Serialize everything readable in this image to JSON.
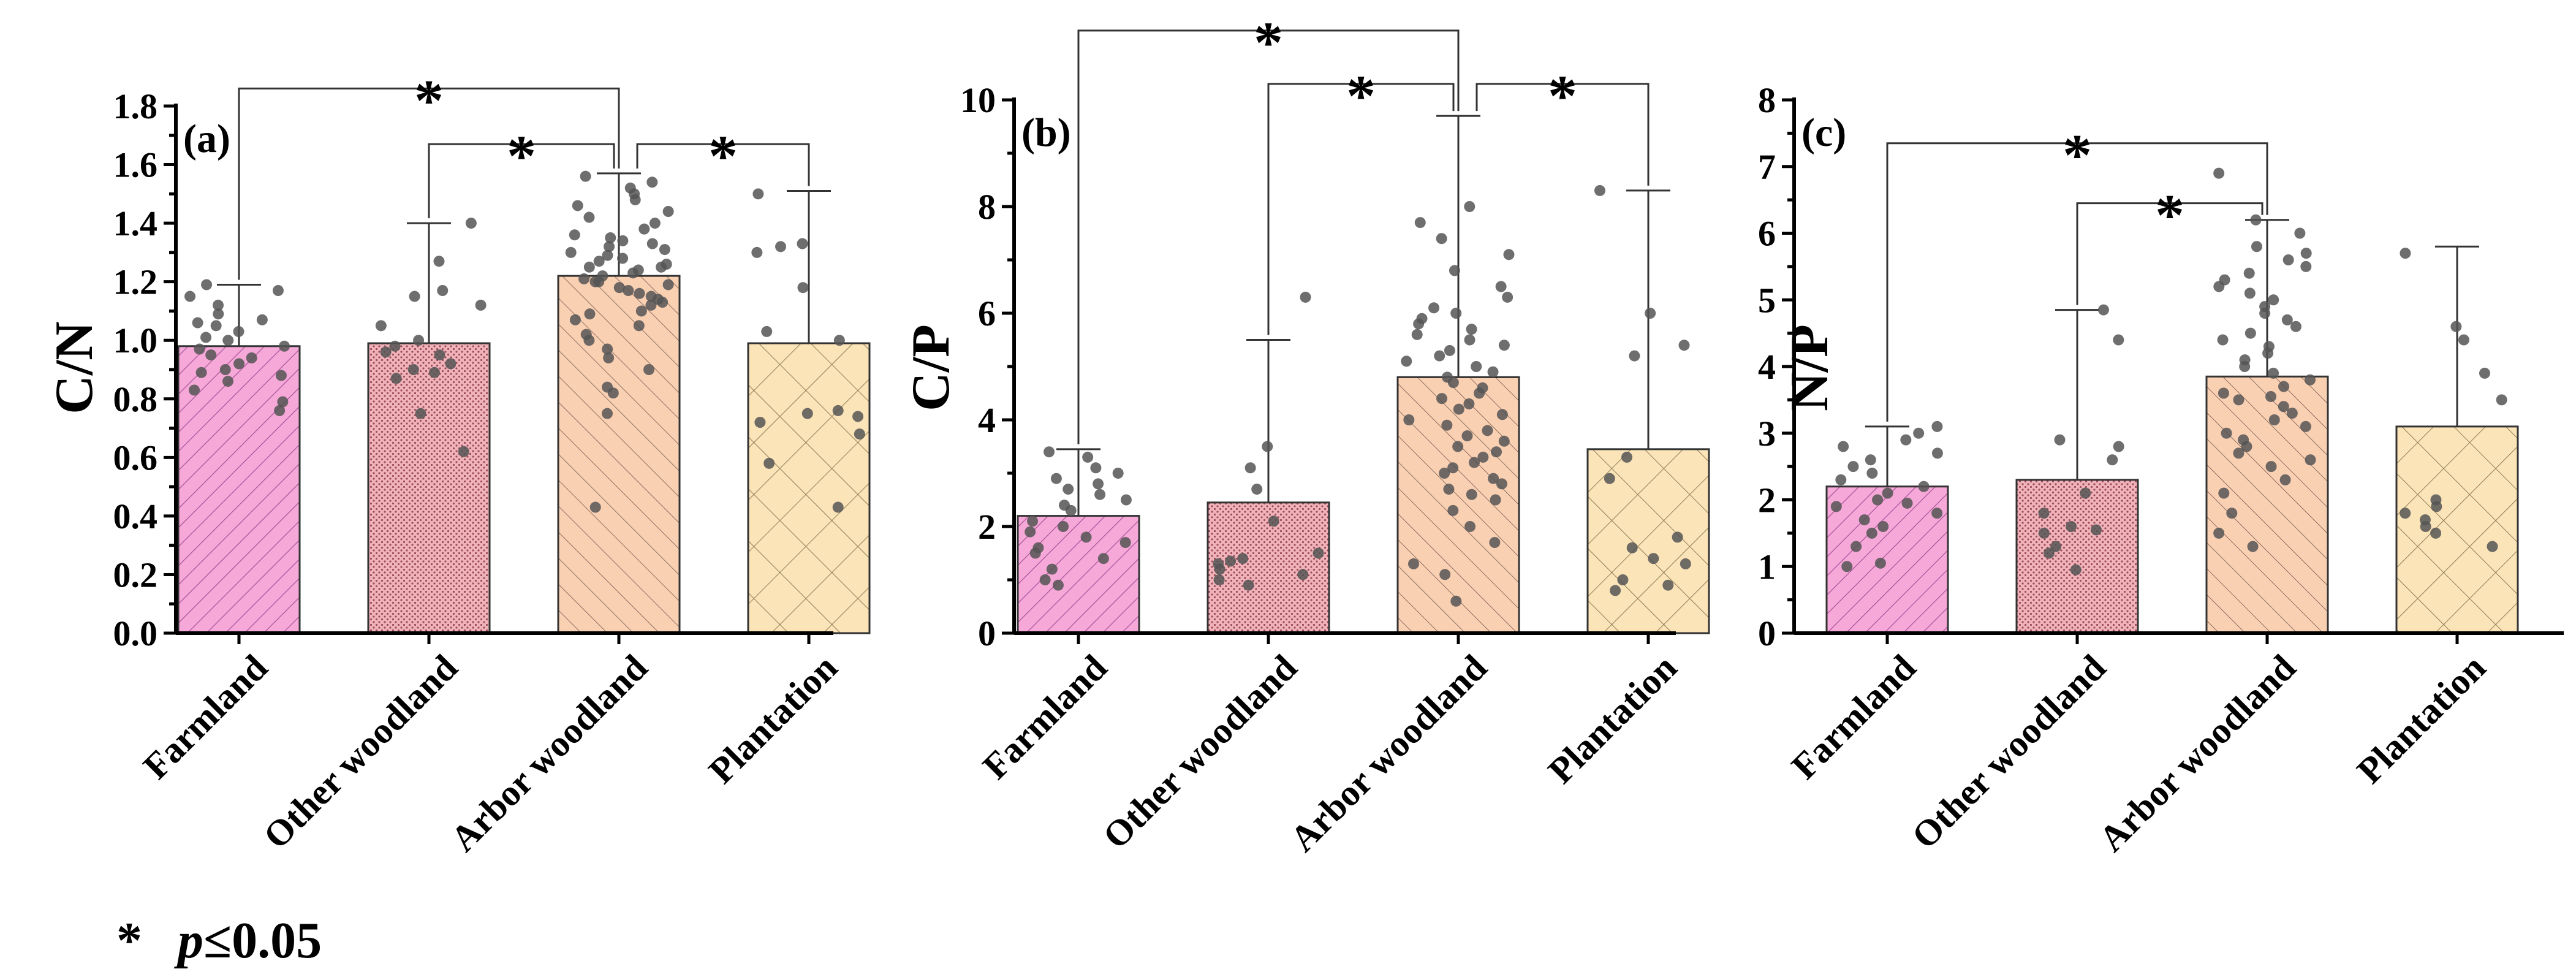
{
  "legend": {
    "symbol": "*",
    "p": "p",
    "rest": "≤0.05"
  },
  "colors": {
    "farmland": "#f6a9d8",
    "other_woodland": "#f0b3ba",
    "arbor_woodland": "#fad0b3",
    "plantation": "#fbe4b8",
    "points": "#555555"
  },
  "chart_data": [
    {
      "type": "bar",
      "panel": "(a)",
      "ylabel": "C/N",
      "ylim": [
        0,
        1.8
      ],
      "yticks": [
        "0.0",
        "0.2",
        "0.4",
        "0.6",
        "0.8",
        "1.0",
        "1.2",
        "1.4",
        "1.6",
        "1.8"
      ],
      "ytick_values": [
        0,
        0.2,
        0.4,
        0.6,
        0.8,
        1.0,
        1.2,
        1.4,
        1.6,
        1.8
      ],
      "categories": [
        "Farmland",
        "Other woodland",
        "Arbor woodland",
        "Plantation"
      ],
      "values": [
        0.98,
        0.99,
        1.22,
        0.99
      ],
      "errors_upper": [
        1.19,
        1.4,
        1.57,
        1.51
      ],
      "significance": [
        {
          "from": 0,
          "to": 2,
          "level": 1.86,
          "label": "*"
        },
        {
          "from": 1,
          "to": 2,
          "level": 1.67,
          "label": "*"
        },
        {
          "from": 2,
          "to": 3,
          "level": 1.67,
          "label": "*"
        }
      ],
      "points": [
        [
          0.76,
          0.79,
          0.83,
          0.86,
          0.88,
          0.89,
          0.9,
          0.92,
          0.94,
          0.95,
          0.97,
          0.98,
          1.0,
          1.01,
          1.03,
          1.05,
          1.06,
          1.07,
          1.09,
          1.12,
          1.15,
          1.17,
          1.19
        ],
        [
          0.62,
          0.75,
          0.87,
          0.89,
          0.9,
          0.92,
          0.95,
          0.96,
          0.98,
          1.0,
          1.05,
          1.12,
          1.15,
          1.17,
          1.27,
          1.4
        ],
        [
          0.43,
          0.75,
          0.82,
          0.84,
          0.9,
          0.94,
          0.97,
          1.0,
          1.02,
          1.05,
          1.07,
          1.09,
          1.1,
          1.12,
          1.13,
          1.14,
          1.15,
          1.16,
          1.17,
          1.18,
          1.19,
          1.2,
          1.2,
          1.21,
          1.22,
          1.23,
          1.24,
          1.25,
          1.25,
          1.26,
          1.27,
          1.28,
          1.29,
          1.3,
          1.31,
          1.32,
          1.33,
          1.34,
          1.35,
          1.36,
          1.38,
          1.4,
          1.42,
          1.44,
          1.46,
          1.48,
          1.5,
          1.52,
          1.54,
          1.56
        ],
        [
          0.43,
          0.58,
          0.68,
          0.72,
          0.74,
          0.75,
          0.76,
          1.0,
          1.03,
          1.18,
          1.3,
          1.32,
          1.33,
          1.5
        ]
      ]
    },
    {
      "type": "bar",
      "panel": "(b)",
      "ylabel": "C/P",
      "ylim": [
        0,
        10
      ],
      "yticks": [
        "0",
        "2",
        "4",
        "6",
        "8",
        "10"
      ],
      "ytick_values": [
        0,
        2,
        4,
        6,
        8,
        10
      ],
      "categories": [
        "Farmland",
        "Other woodland",
        "Arbor woodland",
        "Plantation"
      ],
      "values": [
        2.2,
        2.45,
        4.8,
        3.45
      ],
      "errors_upper": [
        3.45,
        5.5,
        9.7,
        8.3
      ],
      "significance": [
        {
          "from": 0,
          "to": 2,
          "level": 11.3,
          "label": "*"
        },
        {
          "from": 1,
          "to": 2,
          "level": 10.3,
          "label": "*"
        },
        {
          "from": 2,
          "to": 3,
          "level": 10.3,
          "label": "*"
        }
      ],
      "points": [
        [
          0.9,
          1.0,
          1.2,
          1.4,
          1.5,
          1.6,
          1.7,
          1.8,
          1.9,
          2.0,
          2.1,
          2.3,
          2.4,
          2.5,
          2.6,
          2.7,
          2.8,
          2.9,
          3.0,
          3.1,
          3.3,
          3.4
        ],
        [
          0.9,
          1.0,
          1.1,
          1.2,
          1.3,
          1.35,
          1.4,
          1.5,
          2.1,
          2.7,
          3.1,
          3.5,
          6.3
        ],
        [
          0.6,
          1.1,
          1.3,
          1.7,
          2.0,
          2.3,
          2.5,
          2.6,
          2.7,
          2.8,
          2.9,
          3.0,
          3.1,
          3.2,
          3.3,
          3.4,
          3.5,
          3.6,
          3.7,
          3.8,
          3.9,
          4.0,
          4.1,
          4.2,
          4.3,
          4.4,
          4.5,
          4.6,
          4.7,
          4.8,
          4.9,
          5.0,
          5.1,
          5.2,
          5.3,
          5.4,
          5.5,
          5.6,
          5.7,
          5.8,
          5.9,
          6.0,
          6.1,
          6.3,
          6.5,
          6.8,
          7.1,
          7.4,
          7.7,
          8.0
        ],
        [
          0.8,
          0.9,
          1.0,
          1.3,
          1.4,
          1.6,
          1.8,
          2.9,
          3.3,
          5.2,
          5.4,
          6.0,
          8.3
        ]
      ]
    },
    {
      "type": "bar",
      "panel": "(c)",
      "ylabel": "N/P",
      "ylim": [
        0,
        8
      ],
      "yticks": [
        "0",
        "1",
        "2",
        "3",
        "4",
        "5",
        "6",
        "7",
        "8"
      ],
      "ytick_values": [
        0,
        1,
        2,
        3,
        4,
        5,
        6,
        7,
        8
      ],
      "categories": [
        "Farmland",
        "Other woodland",
        "Arbor woodland",
        "Plantation"
      ],
      "values": [
        2.2,
        2.3,
        3.85,
        3.1
      ],
      "errors_upper": [
        3.1,
        4.85,
        6.2,
        5.8
      ],
      "significance": [
        {
          "from": 0,
          "to": 2,
          "level": 7.35,
          "label": "*"
        },
        {
          "from": 1,
          "to": 2,
          "level": 6.45,
          "label": "*"
        }
      ],
      "points": [
        [
          1.0,
          1.05,
          1.3,
          1.5,
          1.6,
          1.7,
          1.8,
          1.9,
          1.95,
          2.0,
          2.1,
          2.2,
          2.3,
          2.4,
          2.5,
          2.6,
          2.7,
          2.8,
          2.9,
          3.0,
          3.1
        ],
        [
          0.95,
          1.2,
          1.3,
          1.5,
          1.55,
          1.6,
          1.8,
          2.1,
          2.6,
          2.8,
          2.9,
          4.4,
          4.85
        ],
        [
          1.3,
          1.5,
          1.8,
          2.1,
          2.3,
          2.5,
          2.6,
          2.7,
          2.8,
          2.9,
          3.0,
          3.1,
          3.2,
          3.3,
          3.4,
          3.5,
          3.55,
          3.6,
          3.7,
          3.8,
          3.9,
          4.0,
          4.1,
          4.2,
          4.3,
          4.4,
          4.5,
          4.6,
          4.7,
          4.8,
          4.9,
          5.0,
          5.1,
          5.2,
          5.3,
          5.4,
          5.5,
          5.6,
          5.7,
          5.8,
          6.0,
          6.2,
          6.9
        ],
        [
          1.3,
          1.5,
          1.6,
          1.7,
          1.8,
          1.9,
          2.0,
          3.5,
          3.9,
          4.4,
          4.6,
          5.7
        ]
      ]
    }
  ]
}
